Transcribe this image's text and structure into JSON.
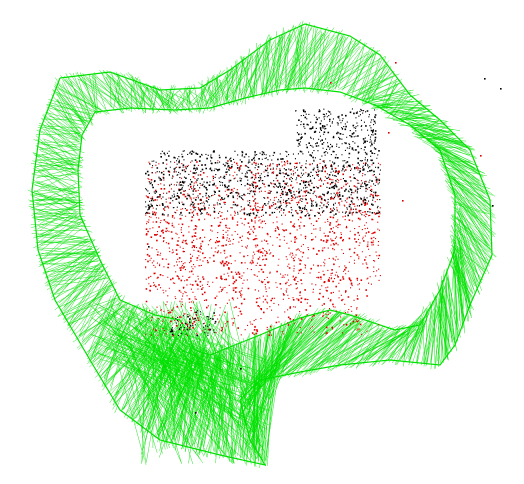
{
  "colors": {
    "background": "#ffffff",
    "trajectory": "#00e000",
    "points_primary": "#e00000",
    "points_secondary": "#000000"
  }
}
